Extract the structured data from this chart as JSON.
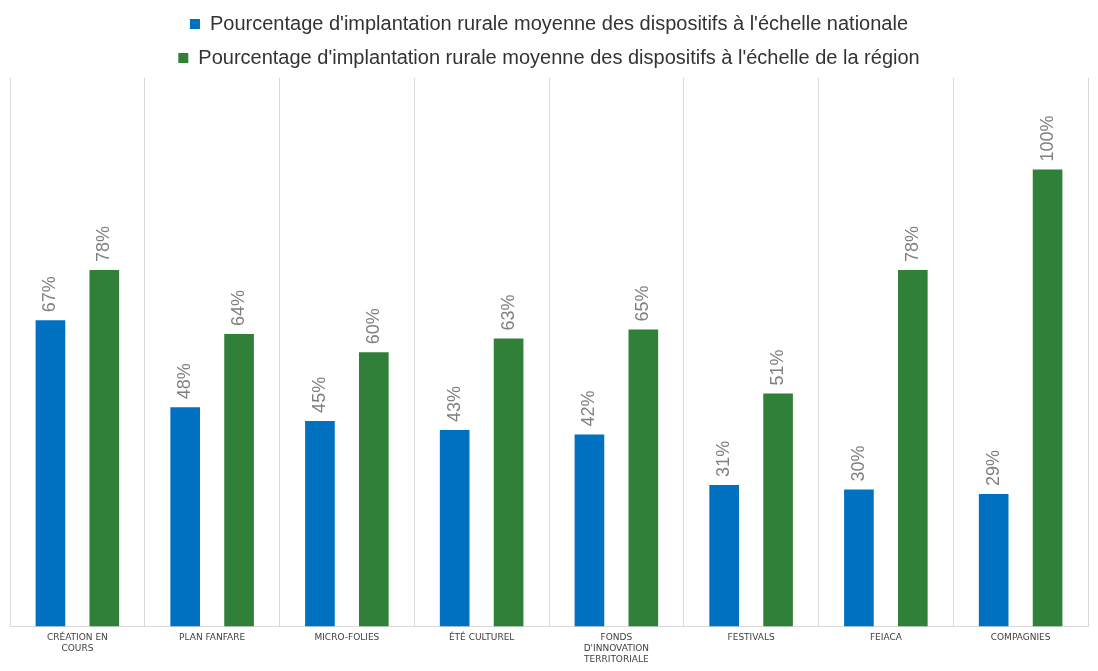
{
  "chart_data": {
    "type": "bar",
    "categories": [
      "CRÉATION EN COURS",
      "PLAN FANFARE",
      "MICRO-FOLIES",
      "ÉTÉ CULTUREL",
      "FONDS D'INNOVATION TERRITORIALE",
      "FESTIVALS",
      "FEIACA",
      "COMPAGNIES"
    ],
    "series": [
      {
        "name": "Pourcentage d'implantation rurale moyenne des dispositifs à l'échelle nationale",
        "color": "#0070c0",
        "values": [
          67,
          48,
          45,
          43,
          42,
          31,
          30,
          29
        ],
        "value_labels": [
          "67%",
          "48%",
          "45%",
          "43%",
          "42%",
          "31%",
          "30%",
          "29%"
        ]
      },
      {
        "name": "Pourcentage d'implantation rurale moyenne des dispositifs à l'échelle de la région",
        "color": "#31803a",
        "values": [
          78,
          64,
          60,
          63,
          65,
          51,
          78,
          100
        ],
        "value_labels": [
          "78%",
          "64%",
          "60%",
          "63%",
          "65%",
          "51%",
          "78%",
          "100%"
        ]
      }
    ],
    "ylim": [
      0,
      120
    ],
    "grid": "x",
    "legend": "top",
    "tick_labels": "x"
  }
}
